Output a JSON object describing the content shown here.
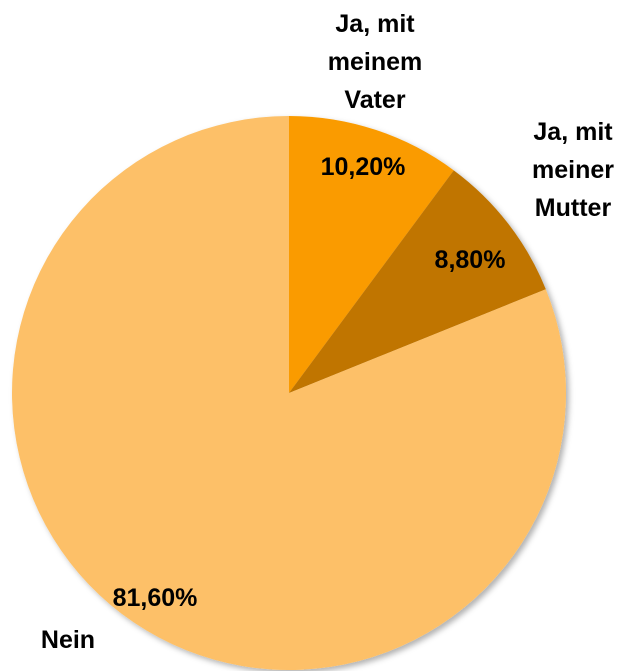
{
  "chart_data": {
    "type": "pie",
    "categories": [
      "Ja, mit meinem Vater",
      "Ja, mit meiner Mutter",
      "Nein"
    ],
    "values": [
      10.2,
      8.8,
      81.6
    ],
    "value_labels": [
      "10,20%",
      "8,80%",
      "81,60%"
    ],
    "colors": [
      "#fa9b05",
      "#c07502",
      "#fdc067"
    ]
  }
}
